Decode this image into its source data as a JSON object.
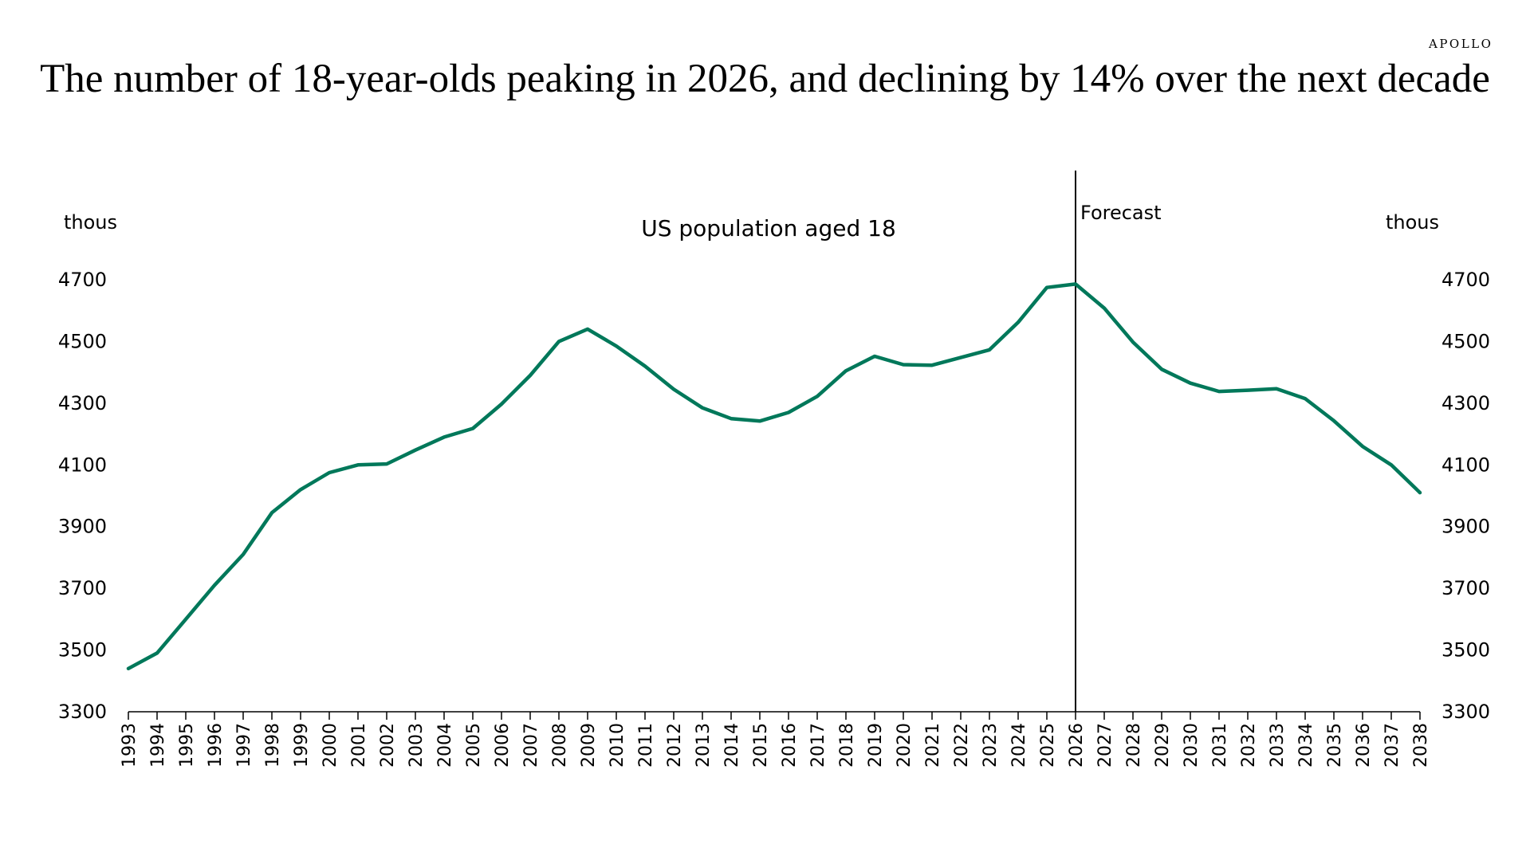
{
  "brand": "APOLLO",
  "title": "The number of 18-year-olds peaking in 2026, and declining by 14% over the next decade",
  "chart_data": {
    "type": "line",
    "title": "US population aged 18",
    "unit_left": "thous",
    "unit_right": "thous",
    "annotation": "Forecast",
    "forecast_start": 2026,
    "x": [
      1993,
      1994,
      1995,
      1996,
      1997,
      1998,
      1999,
      2000,
      2001,
      2002,
      2003,
      2004,
      2005,
      2006,
      2007,
      2008,
      2009,
      2010,
      2011,
      2012,
      2013,
      2014,
      2015,
      2016,
      2017,
      2018,
      2019,
      2020,
      2021,
      2022,
      2023,
      2024,
      2025,
      2026,
      2027,
      2028,
      2029,
      2030,
      2031,
      2032,
      2033,
      2034,
      2035,
      2036,
      2037,
      2038
    ],
    "series": [
      {
        "color": "#00785a",
        "values": [
          3440,
          3490,
          3600,
          3710,
          3810,
          3945,
          4020,
          4075,
          4100,
          4103,
          4148,
          4190,
          4218,
          4297,
          4390,
          4500,
          4540,
          4485,
          4420,
          4345,
          4285,
          4250,
          4242,
          4270,
          4322,
          4405,
          4452,
          4425,
          4423,
          4448,
          4473,
          4562,
          4675,
          4686,
          4608,
          4498,
          4410,
          4365,
          4338,
          4342,
          4347,
          4315,
          4243,
          4160,
          4100,
          4010
        ]
      }
    ],
    "ylim": [
      3300,
      4700
    ],
    "yticks": [
      3300,
      3500,
      3700,
      3900,
      4100,
      4300,
      4500,
      4700
    ],
    "grid": false,
    "legend": "none"
  }
}
